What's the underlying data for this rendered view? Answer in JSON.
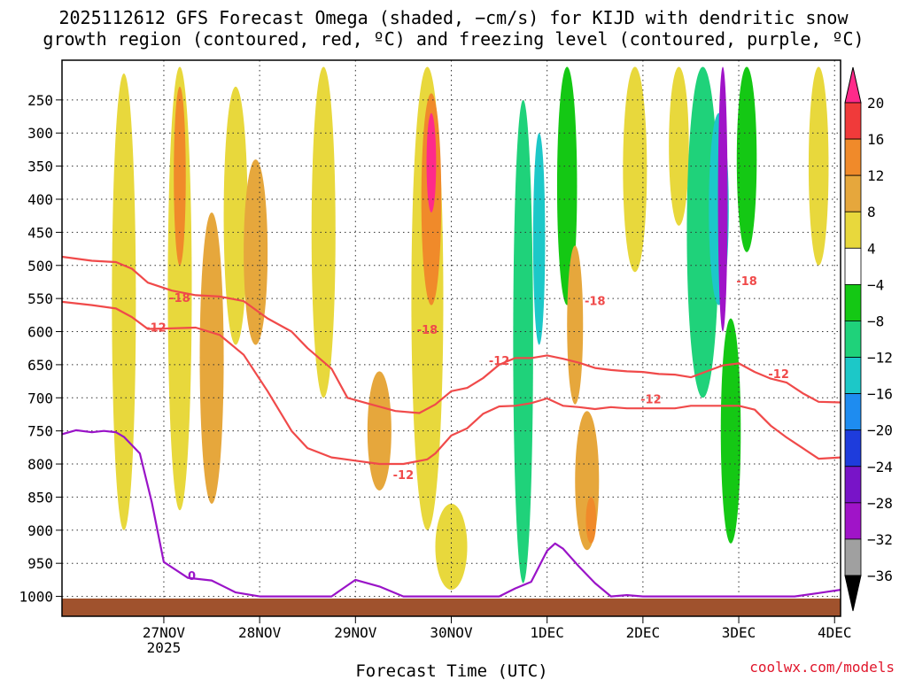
{
  "chart_data": {
    "type": "heatmap",
    "title_lines": [
      "2025112612 GFS Forecast Omega (shaded, −cm/s) for KIJD with dendritic snow",
      "growth region (contoured, red, ºC) and freezing level (contoured, purple, ºC)"
    ],
    "xlabel": "Forecast Time (UTC)",
    "credit": "coolwx.com/models",
    "x_axis": {
      "range_hours": [
        -13.5,
        181.5
      ],
      "ticks": [
        {
          "label": "27NOV",
          "sublabel": "2025",
          "hour": 12
        },
        {
          "label": "28NOV",
          "sublabel": "",
          "hour": 36
        },
        {
          "label": "29NOV",
          "sublabel": "",
          "hour": 60
        },
        {
          "label": "30NOV",
          "sublabel": "",
          "hour": 84
        },
        {
          "label": "1DEC",
          "sublabel": "",
          "hour": 108
        },
        {
          "label": "2DEC",
          "sublabel": "",
          "hour": 132
        },
        {
          "label": "3DEC",
          "sublabel": "",
          "hour": 156
        },
        {
          "label": "4DEC",
          "sublabel": "",
          "hour": 180
        }
      ]
    },
    "y_axis": {
      "quantity": "pressure (hPa)",
      "range": [
        1030,
        190
      ],
      "ticks": [
        250,
        300,
        350,
        400,
        450,
        500,
        550,
        600,
        650,
        700,
        750,
        800,
        850,
        900,
        950,
        1000
      ]
    },
    "colorbar": {
      "labels": [
        "20",
        "16",
        "12",
        "8",
        "4",
        "−4",
        "−8",
        "−12",
        "−16",
        "−20",
        "−24",
        "−28",
        "−32",
        "−36"
      ],
      "top_color": "#ff2a8a",
      "bottom_color": "#000000",
      "bands": [
        {
          "from": 16,
          "to": 20,
          "color": "#f03a3a"
        },
        {
          "from": 12,
          "to": 16,
          "color": "#f08a2a"
        },
        {
          "from": 8,
          "to": 12,
          "color": "#e6a73c"
        },
        {
          "from": 4,
          "to": 8,
          "color": "#e8d83c"
        },
        {
          "from": -4,
          "to": 4,
          "color": "#ffffff"
        },
        {
          "from": -8,
          "to": -4,
          "color": "#14c814"
        },
        {
          "from": -12,
          "to": -8,
          "color": "#1fd27a"
        },
        {
          "from": -16,
          "to": -12,
          "color": "#1cc8c8"
        },
        {
          "from": -20,
          "to": -16,
          "color": "#1e8cf0"
        },
        {
          "from": -24,
          "to": -20,
          "color": "#1e3cdc"
        },
        {
          "from": -28,
          "to": -24,
          "color": "#7814c8"
        },
        {
          "from": -32,
          "to": -28,
          "color": "#a014c8"
        },
        {
          "from": -36,
          "to": -32,
          "color": "#a0a0a0"
        }
      ]
    },
    "omega_regions": [
      {
        "hour": 2,
        "p_top": 210,
        "p_bottom": 900,
        "width_h": 3,
        "value": 6
      },
      {
        "hour": 16,
        "p_top": 200,
        "p_bottom": 870,
        "width_h": 3,
        "value": 6
      },
      {
        "hour": 16,
        "p_top": 230,
        "p_bottom": 500,
        "width_h": 1.5,
        "value": 13
      },
      {
        "hour": 24,
        "p_top": 420,
        "p_bottom": 860,
        "width_h": 3,
        "value": 10
      },
      {
        "hour": 30,
        "p_top": 230,
        "p_bottom": 620,
        "width_h": 3,
        "value": 6
      },
      {
        "hour": 35,
        "p_top": 340,
        "p_bottom": 620,
        "width_h": 3,
        "value": 9
      },
      {
        "hour": 52,
        "p_top": 200,
        "p_bottom": 700,
        "width_h": 3,
        "value": 5
      },
      {
        "hour": 66,
        "p_top": 660,
        "p_bottom": 840,
        "width_h": 3,
        "value": 8
      },
      {
        "hour": 78,
        "p_top": 200,
        "p_bottom": 900,
        "width_h": 4,
        "value": 6
      },
      {
        "hour": 79,
        "p_top": 240,
        "p_bottom": 560,
        "width_h": 2.5,
        "value": 13
      },
      {
        "hour": 79,
        "p_top": 270,
        "p_bottom": 420,
        "width_h": 1.2,
        "value": 22
      },
      {
        "hour": 84,
        "p_top": 860,
        "p_bottom": 990,
        "width_h": 4,
        "value": 6
      },
      {
        "hour": 102,
        "p_top": 250,
        "p_bottom": 980,
        "width_h": 2.5,
        "value": -10
      },
      {
        "hour": 106,
        "p_top": 300,
        "p_bottom": 620,
        "width_h": 1.5,
        "value": -15
      },
      {
        "hour": 113,
        "p_top": 200,
        "p_bottom": 560,
        "width_h": 2.5,
        "value": -7
      },
      {
        "hour": 115,
        "p_top": 470,
        "p_bottom": 710,
        "width_h": 2,
        "value": 11
      },
      {
        "hour": 118,
        "p_top": 720,
        "p_bottom": 930,
        "width_h": 3,
        "value": 9
      },
      {
        "hour": 119,
        "p_top": 850,
        "p_bottom": 920,
        "width_h": 1.3,
        "value": 15
      },
      {
        "hour": 130,
        "p_top": 200,
        "p_bottom": 510,
        "width_h": 3,
        "value": 6
      },
      {
        "hour": 141,
        "p_top": 200,
        "p_bottom": 440,
        "width_h": 2.5,
        "value": 5
      },
      {
        "hour": 147,
        "p_top": 200,
        "p_bottom": 700,
        "width_h": 4,
        "value": -10
      },
      {
        "hour": 151,
        "p_top": 270,
        "p_bottom": 560,
        "width_h": 2.5,
        "value": -14
      },
      {
        "hour": 152,
        "p_top": 200,
        "p_bottom": 600,
        "width_h": 1.2,
        "value": -30
      },
      {
        "hour": 154,
        "p_top": 580,
        "p_bottom": 920,
        "width_h": 2.5,
        "value": -8
      },
      {
        "hour": 158,
        "p_top": 200,
        "p_bottom": 480,
        "width_h": 2.5,
        "value": -7
      },
      {
        "hour": 176,
        "p_top": 200,
        "p_bottom": 500,
        "width_h": 2.5,
        "value": 5
      }
    ],
    "contours": [
      {
        "kind": "dendritic",
        "level": "-18",
        "color": "#f04a4a",
        "points": [
          [
            -13.5,
            487
          ],
          [
            -6,
            493
          ],
          [
            0,
            495
          ],
          [
            4,
            505
          ],
          [
            8,
            526
          ],
          [
            14,
            538
          ],
          [
            20,
            545
          ],
          [
            26,
            547
          ],
          [
            32,
            554
          ],
          [
            38,
            580
          ],
          [
            44,
            600
          ],
          [
            48,
            625
          ],
          [
            54,
            656
          ],
          [
            58,
            700
          ],
          [
            64,
            710
          ],
          [
            70,
            720
          ],
          [
            76,
            723
          ],
          [
            80,
            710
          ],
          [
            84,
            690
          ],
          [
            88,
            685
          ],
          [
            92,
            670
          ],
          [
            96,
            650
          ],
          [
            100,
            640
          ],
          [
            104,
            640
          ],
          [
            108,
            636
          ],
          [
            112,
            641
          ],
          [
            116,
            647
          ],
          [
            120,
            655
          ],
          [
            124,
            658
          ],
          [
            128,
            660
          ],
          [
            132,
            661
          ],
          [
            136,
            664
          ],
          [
            140,
            665
          ],
          [
            144,
            669
          ],
          [
            148,
            660
          ],
          [
            152,
            651
          ],
          [
            156,
            648
          ],
          [
            160,
            661
          ],
          [
            164,
            671
          ],
          [
            168,
            677
          ],
          [
            172,
            693
          ],
          [
            176,
            706
          ],
          [
            181.5,
            707
          ]
        ]
      },
      {
        "kind": "dendritic",
        "level": "-12",
        "color": "#f04a4a",
        "points": [
          [
            -13.5,
            555
          ],
          [
            -6,
            560
          ],
          [
            0,
            565
          ],
          [
            4,
            578
          ],
          [
            8,
            596
          ],
          [
            14,
            595
          ],
          [
            20,
            594
          ],
          [
            26,
            605
          ],
          [
            32,
            635
          ],
          [
            38,
            690
          ],
          [
            44,
            750
          ],
          [
            48,
            776
          ],
          [
            54,
            790
          ],
          [
            60,
            795
          ],
          [
            66,
            800
          ],
          [
            72,
            800
          ],
          [
            78,
            793
          ],
          [
            80,
            784
          ],
          [
            84,
            757
          ],
          [
            88,
            746
          ],
          [
            92,
            724
          ],
          [
            96,
            713
          ],
          [
            100,
            712
          ],
          [
            104,
            708
          ],
          [
            108,
            701
          ],
          [
            112,
            712
          ],
          [
            116,
            714
          ],
          [
            120,
            717
          ],
          [
            124,
            714
          ],
          [
            128,
            716
          ],
          [
            132,
            716
          ],
          [
            136,
            716
          ],
          [
            140,
            716
          ],
          [
            144,
            712
          ],
          [
            148,
            712
          ],
          [
            152,
            712
          ],
          [
            156,
            712
          ],
          [
            160,
            718
          ],
          [
            164,
            742
          ],
          [
            168,
            760
          ],
          [
            172,
            776
          ],
          [
            176,
            792
          ],
          [
            181.5,
            790
          ]
        ]
      },
      {
        "kind": "freezing",
        "level": "0",
        "color": "#9a14c8",
        "points": [
          [
            -13.5,
            755
          ],
          [
            -10,
            749
          ],
          [
            -6,
            752
          ],
          [
            -3,
            750
          ],
          [
            0,
            752
          ],
          [
            2,
            759
          ],
          [
            6,
            784
          ],
          [
            9,
            858
          ],
          [
            12,
            948
          ],
          [
            18,
            972
          ],
          [
            24,
            976
          ],
          [
            30,
            994
          ],
          [
            36,
            1000
          ],
          [
            42,
            1000
          ],
          [
            48,
            1000
          ],
          [
            54,
            1000
          ],
          [
            60,
            975
          ],
          [
            66,
            985
          ],
          [
            72,
            1000
          ],
          [
            78,
            1000
          ],
          [
            84,
            1000
          ],
          [
            90,
            1000
          ],
          [
            96,
            1000
          ],
          [
            100,
            988
          ],
          [
            104,
            978
          ],
          [
            108,
            931
          ],
          [
            110,
            920
          ],
          [
            112,
            928
          ],
          [
            116,
            955
          ],
          [
            120,
            980
          ],
          [
            124,
            1000
          ],
          [
            128,
            998
          ],
          [
            132,
            1000
          ],
          [
            136,
            1000
          ],
          [
            140,
            1000
          ],
          [
            150,
            1000
          ],
          [
            160,
            1000
          ],
          [
            170,
            1000
          ],
          [
            176,
            995
          ],
          [
            181.5,
            990
          ]
        ]
      }
    ],
    "contour_labels": [
      {
        "text": "-18",
        "hour": 16,
        "p": 555,
        "color": "#f04a4a"
      },
      {
        "text": "-12",
        "hour": 10,
        "p": 600,
        "color": "#f04a4a"
      },
      {
        "text": "-18",
        "hour": 78,
        "p": 603,
        "color": "#f04a4a"
      },
      {
        "text": "-18",
        "hour": 120,
        "p": 560,
        "color": "#f04a4a"
      },
      {
        "text": "-18",
        "hour": 158,
        "p": 530,
        "color": "#f04a4a"
      },
      {
        "text": "-12",
        "hour": 96,
        "p": 650,
        "color": "#f04a4a"
      },
      {
        "text": "-12",
        "hour": 72,
        "p": 823,
        "color": "#f04a4a"
      },
      {
        "text": "-12",
        "hour": 134,
        "p": 708,
        "color": "#f04a4a"
      },
      {
        "text": "-12",
        "hour": 166,
        "p": 670,
        "color": "#f04a4a"
      },
      {
        "text": "0",
        "hour": 19,
        "p": 975,
        "color": "#9a14c8"
      }
    ]
  }
}
